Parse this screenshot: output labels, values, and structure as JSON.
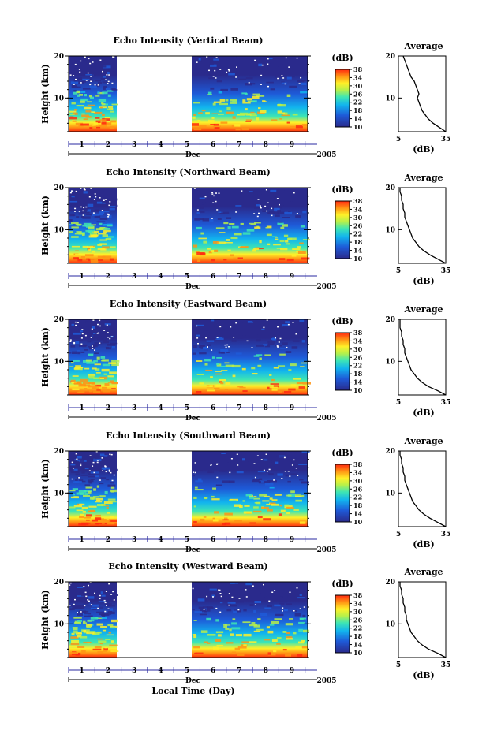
{
  "figure": {
    "xlabel": "Local Time (Day)",
    "year_label": "2005",
    "month_label": "Dec",
    "colorbar_unit": "(dB)",
    "average_title": "Average",
    "average_xlabel": "(dB)"
  },
  "panels": [
    {
      "title": "Echo Intensity (Vertical Beam)",
      "ylabel": "Height (km)"
    },
    {
      "title": "Echo Intensity (Northward Beam)",
      "ylabel": "Height (km)"
    },
    {
      "title": "Echo Intensity (Eastward Beam)",
      "ylabel": "Height (km)"
    },
    {
      "title": "Echo Intensity (Southward Beam)",
      "ylabel": "Height (km)"
    },
    {
      "title": "Echo Intensity (Westward Beam)",
      "ylabel": "Height (km)"
    }
  ],
  "colors": {
    "low": "#2a2a8c",
    "high": "#ff2a10",
    "gap": "#ffffff"
  },
  "chart_data": [
    {
      "type": "heatmap",
      "title": "Echo Intensity (Vertical Beam)",
      "xlabel": "Local Time (Day)",
      "ylabel": "Height (km)",
      "x_ticks": [
        "1",
        "2",
        "3",
        "4",
        "5",
        "6",
        "7",
        "8",
        "9"
      ],
      "y_ticks": [
        "10",
        "20"
      ],
      "ylim": [
        2,
        20
      ],
      "data_gap_days": [
        2.2,
        5.0
      ],
      "colorbar": {
        "label": "(dB)",
        "ticks": [
          "10",
          "14",
          "18",
          "22",
          "26",
          "30",
          "34",
          "38"
        ],
        "range": [
          10,
          38
        ]
      },
      "average_profile": {
        "title": "Average",
        "xlabel": "(dB)",
        "x_ticks": [
          "5",
          "35"
        ],
        "xlim": [
          5,
          35
        ],
        "height": [
          2,
          3,
          4,
          5,
          6,
          7,
          8,
          9,
          10,
          11,
          12,
          13,
          14,
          15,
          16,
          17,
          18,
          19,
          20
        ],
        "value": [
          35,
          31,
          27,
          24,
          22,
          20,
          19,
          18,
          17,
          18,
          17,
          16,
          15,
          13,
          12,
          11,
          10,
          9,
          8
        ]
      }
    },
    {
      "type": "heatmap",
      "title": "Echo Intensity (Northward Beam)",
      "xlabel": "Local Time (Day)",
      "ylabel": "Height (km)",
      "x_ticks": [
        "1",
        "2",
        "3",
        "4",
        "5",
        "6",
        "7",
        "8",
        "9"
      ],
      "y_ticks": [
        "10",
        "20"
      ],
      "ylim": [
        2,
        20
      ],
      "data_gap_days": [
        2.2,
        5.0
      ],
      "colorbar": {
        "label": "(dB)",
        "ticks": [
          "10",
          "14",
          "18",
          "22",
          "26",
          "30",
          "34",
          "38"
        ],
        "range": [
          10,
          38
        ]
      },
      "average_profile": {
        "title": "Average",
        "xlabel": "(dB)",
        "x_ticks": [
          "5",
          "35"
        ],
        "xlim": [
          5,
          35
        ],
        "height": [
          2,
          3,
          4,
          5,
          6,
          7,
          8,
          9,
          10,
          11,
          12,
          13,
          14,
          15,
          16,
          17,
          18,
          19,
          20
        ],
        "value": [
          35,
          30,
          25,
          21,
          18,
          16,
          14,
          13,
          12,
          11,
          10,
          9,
          9,
          8,
          8,
          7,
          7,
          6,
          6
        ]
      }
    },
    {
      "type": "heatmap",
      "title": "Echo Intensity (Eastward Beam)",
      "xlabel": "Local Time (Day)",
      "ylabel": "Height (km)",
      "x_ticks": [
        "1",
        "2",
        "3",
        "4",
        "5",
        "6",
        "7",
        "8",
        "9"
      ],
      "y_ticks": [
        "10",
        "20"
      ],
      "ylim": [
        2,
        20
      ],
      "data_gap_days": [
        2.2,
        5.0
      ],
      "colorbar": {
        "label": "(dB)",
        "ticks": [
          "10",
          "14",
          "18",
          "22",
          "26",
          "30",
          "34",
          "38"
        ],
        "range": [
          10,
          38
        ]
      },
      "average_profile": {
        "title": "Average",
        "xlabel": "(dB)",
        "x_ticks": [
          "5",
          "35"
        ],
        "xlim": [
          5,
          35
        ],
        "height": [
          2,
          3,
          4,
          5,
          6,
          7,
          8,
          9,
          10,
          11,
          12,
          13,
          14,
          15,
          16,
          17,
          18,
          19,
          20
        ],
        "value": [
          35,
          30,
          24,
          20,
          17,
          15,
          13,
          12,
          11,
          10,
          9,
          9,
          8,
          8,
          7,
          7,
          6,
          6,
          6
        ]
      }
    },
    {
      "type": "heatmap",
      "title": "Echo Intensity (Southward Beam)",
      "xlabel": "Local Time (Day)",
      "ylabel": "Height (km)",
      "x_ticks": [
        "1",
        "2",
        "3",
        "4",
        "5",
        "6",
        "7",
        "8",
        "9"
      ],
      "y_ticks": [
        "10",
        "20"
      ],
      "ylim": [
        2,
        20
      ],
      "data_gap_days": [
        2.2,
        5.0
      ],
      "colorbar": {
        "label": "(dB)",
        "ticks": [
          "10",
          "14",
          "18",
          "22",
          "26",
          "30",
          "34",
          "38"
        ],
        "range": [
          10,
          38
        ]
      },
      "average_profile": {
        "title": "Average",
        "xlabel": "(dB)",
        "x_ticks": [
          "5",
          "35"
        ],
        "xlim": [
          5,
          35
        ],
        "height": [
          2,
          3,
          4,
          5,
          6,
          7,
          8,
          9,
          10,
          11,
          12,
          13,
          14,
          15,
          16,
          17,
          18,
          19,
          20
        ],
        "value": [
          35,
          30,
          25,
          21,
          18,
          16,
          14,
          13,
          12,
          11,
          10,
          9,
          9,
          8,
          8,
          7,
          7,
          6,
          6
        ]
      }
    },
    {
      "type": "heatmap",
      "title": "Echo Intensity (Westward Beam)",
      "xlabel": "Local Time (Day)",
      "ylabel": "Height (km)",
      "x_ticks": [
        "1",
        "2",
        "3",
        "4",
        "5",
        "6",
        "7",
        "8",
        "9"
      ],
      "y_ticks": [
        "10",
        "20"
      ],
      "ylim": [
        2,
        20
      ],
      "data_gap_days": [
        2.2,
        5.0
      ],
      "colorbar": {
        "label": "(dB)",
        "ticks": [
          "10",
          "14",
          "18",
          "22",
          "26",
          "30",
          "34",
          "38"
        ],
        "range": [
          10,
          38
        ]
      },
      "average_profile": {
        "title": "Average",
        "xlabel": "(dB)",
        "x_ticks": [
          "5",
          "35"
        ],
        "xlim": [
          5,
          35
        ],
        "height": [
          2,
          3,
          4,
          5,
          6,
          7,
          8,
          9,
          10,
          11,
          12,
          13,
          14,
          15,
          16,
          17,
          18,
          19,
          20
        ],
        "value": [
          35,
          30,
          24,
          20,
          17,
          15,
          13,
          12,
          11,
          10,
          10,
          9,
          9,
          8,
          8,
          7,
          7,
          6,
          6
        ]
      }
    }
  ]
}
